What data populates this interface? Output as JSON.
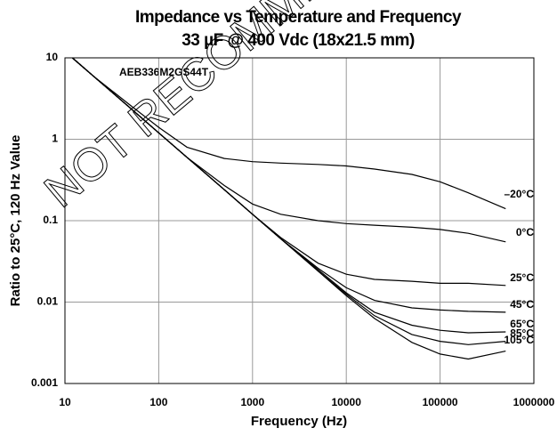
{
  "chart_data": {
    "type": "line",
    "title": "Impedance vs Temperature and Frequency",
    "subtitle": "33 µF @ 400 Vdc (18x21.5 mm)",
    "x_label": "Frequency (Hz)",
    "y_label": "Ratio to 25°C, 120 Hz Value",
    "annotations": [
      "AEB336M2GS44T",
      "NOT RECOMMENDED"
    ],
    "x": [
      12,
      20,
      50,
      100,
      200,
      500,
      1000,
      2000,
      5000,
      10000,
      20000,
      50000,
      100000,
      200000,
      500000
    ],
    "series": [
      {
        "name": "–20°C",
        "color": "#000000",
        "values": [
          10,
          6,
          2.6,
          1.4,
          0.8,
          0.58,
          0.53,
          0.51,
          0.49,
          0.47,
          0.43,
          0.37,
          0.3,
          0.22,
          0.14
        ]
      },
      {
        "name": "0°C",
        "color": "#000000",
        "values": [
          10,
          6,
          2.4,
          1.2,
          0.6,
          0.27,
          0.16,
          0.12,
          0.1,
          0.092,
          0.088,
          0.083,
          0.078,
          0.07,
          0.055
        ]
      },
      {
        "name": "25°C",
        "color": "#000000",
        "values": [
          10,
          6,
          2.4,
          1.2,
          0.6,
          0.24,
          0.12,
          0.062,
          0.03,
          0.022,
          0.019,
          0.018,
          0.017,
          0.017,
          0.016
        ]
      },
      {
        "name": "45°C",
        "color": "#000000",
        "values": [
          10,
          6,
          2.4,
          1.2,
          0.6,
          0.24,
          0.12,
          0.06,
          0.026,
          0.015,
          0.0105,
          0.0085,
          0.008,
          0.0077,
          0.0075
        ]
      },
      {
        "name": "65°C",
        "color": "#000000",
        "values": [
          10,
          6,
          2.4,
          1.2,
          0.6,
          0.24,
          0.12,
          0.06,
          0.025,
          0.013,
          0.0075,
          0.0052,
          0.0045,
          0.0042,
          0.0043
        ]
      },
      {
        "name": "85°C",
        "color": "#000000",
        "values": [
          10,
          6,
          2.4,
          1.2,
          0.6,
          0.24,
          0.12,
          0.06,
          0.024,
          0.0125,
          0.0068,
          0.004,
          0.0033,
          0.003,
          0.0033
        ]
      },
      {
        "name": "105°C",
        "color": "#000000",
        "values": [
          10,
          6,
          2.4,
          1.2,
          0.6,
          0.24,
          0.12,
          0.06,
          0.024,
          0.012,
          0.0063,
          0.0032,
          0.0023,
          0.002,
          0.0025
        ]
      }
    ],
    "xlim": [
      10,
      1000000
    ],
    "xticks": [
      10,
      100,
      1000,
      10000,
      100000,
      1000000
    ],
    "ylim": [
      0.001,
      10
    ],
    "yticks": [
      0.001,
      0.01,
      0.1,
      1,
      10
    ],
    "xscale": "log",
    "yscale": "log",
    "grid": true
  }
}
